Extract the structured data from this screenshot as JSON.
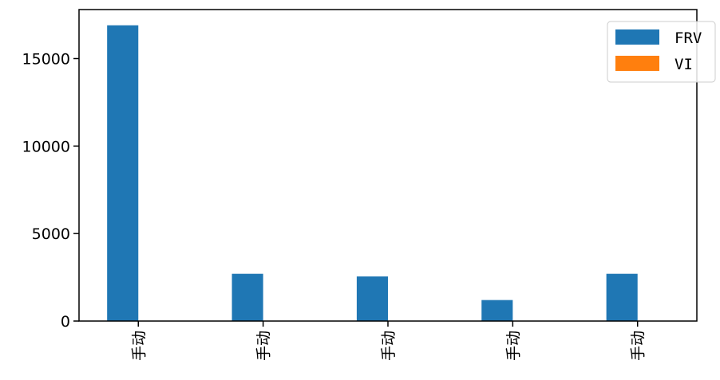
{
  "chart_data": {
    "type": "bar",
    "categories": [
      "手动",
      "手动",
      "手动",
      "手动",
      "手动"
    ],
    "series": [
      {
        "name": "FRV",
        "color": "#1f77b4",
        "values": [
          16900,
          2700,
          2550,
          1200,
          2700
        ]
      },
      {
        "name": "VI",
        "color": "#ff7f0e",
        "values": [
          0,
          0,
          0,
          0,
          0
        ]
      }
    ],
    "yticks": [
      0,
      5000,
      10000,
      15000
    ],
    "ylim": [
      0,
      17800
    ],
    "legend_position": "top-right",
    "grid": false
  }
}
